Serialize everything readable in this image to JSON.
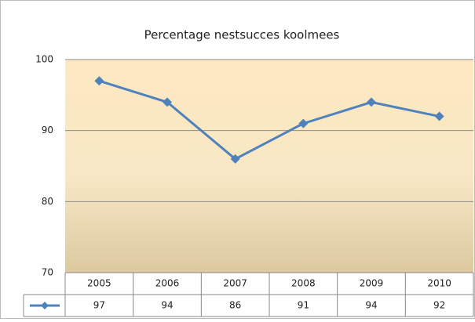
{
  "chart_data": {
    "type": "line",
    "title": "Percentage nestsucces koolmees",
    "categories": [
      "2005",
      "2006",
      "2007",
      "2008",
      "2009",
      "2010"
    ],
    "series": [
      {
        "color": "#4f81bd",
        "values": [
          97,
          94,
          86,
          91,
          94,
          92
        ]
      }
    ],
    "ylim": [
      70,
      100
    ],
    "yticks": [
      70,
      80,
      90,
      100
    ],
    "grid": true
  }
}
